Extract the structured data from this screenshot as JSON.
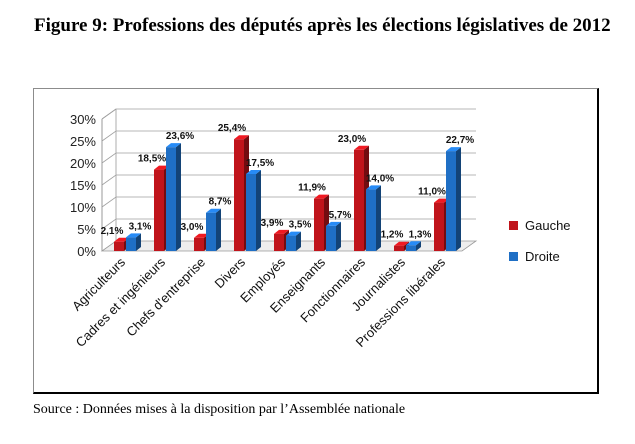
{
  "title": "Figure 9: Professions des députés après les élections législatives de 2012",
  "source": "Source : Données mises à la disposition par l’Assemblée nationale",
  "chart_data": {
    "type": "bar",
    "categories": [
      "Agriculteurs",
      "Cadres et ingénieurs",
      "Chefs d'entreprise",
      "Divers",
      "Employés",
      "Enseignants",
      "Fonctionnaires",
      "Journalistes",
      "Professions libérales"
    ],
    "series": [
      {
        "name": "Gauche",
        "color": "#c0141b",
        "values": [
          2.1,
          18.5,
          3.0,
          25.4,
          3.9,
          11.9,
          23.0,
          1.2,
          11.0
        ],
        "labels": [
          "2,1%",
          "18,5%",
          "3,0%",
          "25,4%",
          "3,9%",
          "11,9%",
          "23,0%",
          "1,2%",
          "11,0%"
        ]
      },
      {
        "name": "Droite",
        "color": "#1f6fc5",
        "values": [
          3.1,
          23.6,
          8.7,
          17.5,
          3.5,
          5.7,
          14.0,
          1.3,
          22.7
        ],
        "labels": [
          "3,1%",
          "23,6%",
          "8,7%",
          "17,5%",
          "3,5%",
          "5,7%",
          "14,0%",
          "1,3%",
          "22,7%"
        ]
      }
    ],
    "yticks": [
      "0%",
      "5%",
      "10%",
      "15%",
      "20%",
      "25%",
      "30%"
    ],
    "ylim": [
      0,
      30
    ],
    "legend_position": "right",
    "style": "3d-bars"
  }
}
